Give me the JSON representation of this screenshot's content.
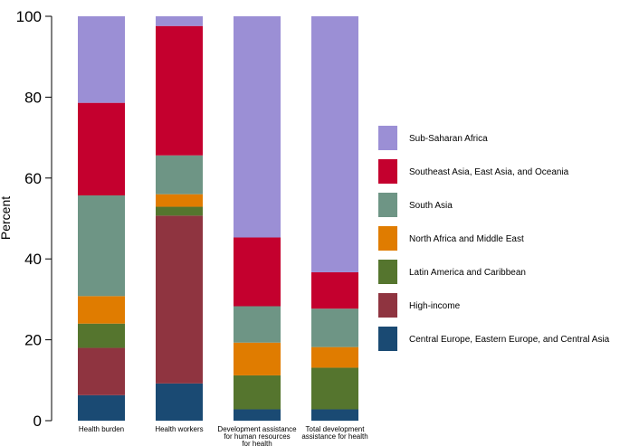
{
  "chart_data": {
    "type": "bar",
    "stacked": true,
    "ylabel": "Percent",
    "ylim": [
      0,
      100
    ],
    "yticks": [
      0,
      20,
      40,
      60,
      80,
      100
    ],
    "grid": false,
    "legend_position": "right",
    "categories": [
      [
        "Health burden"
      ],
      [
        "Health workers"
      ],
      [
        "Development assistance",
        "for human resources",
        "for health"
      ],
      [
        "Total development",
        "assistance for health"
      ]
    ],
    "series": [
      {
        "name": "Central Europe, Eastern Europe, and Central Asia",
        "color": "#1a4a73",
        "values": [
          6.3,
          9.2,
          2.8,
          2.8
        ]
      },
      {
        "name": "High-income",
        "color": "#8f3440",
        "values": [
          11.7,
          41.5,
          0.0,
          0.0
        ]
      },
      {
        "name": "Latin America and Caribbean",
        "color": "#55752e",
        "values": [
          6.0,
          2.2,
          8.4,
          10.3
        ]
      },
      {
        "name": "North Africa and Middle East",
        "color": "#e07c00",
        "values": [
          6.8,
          3.1,
          8.1,
          5.1
        ]
      },
      {
        "name": "South Asia",
        "color": "#6e9585",
        "values": [
          24.9,
          9.6,
          9.0,
          9.5
        ]
      },
      {
        "name": "Southeast Asia, East Asia, and Oceania",
        "color": "#c4002e",
        "values": [
          22.9,
          32.0,
          17.0,
          9.0
        ]
      },
      {
        "name": "Sub-Saharan Africa",
        "color": "#9b8fd5",
        "values": [
          21.4,
          2.4,
          54.7,
          63.3
        ]
      }
    ]
  }
}
